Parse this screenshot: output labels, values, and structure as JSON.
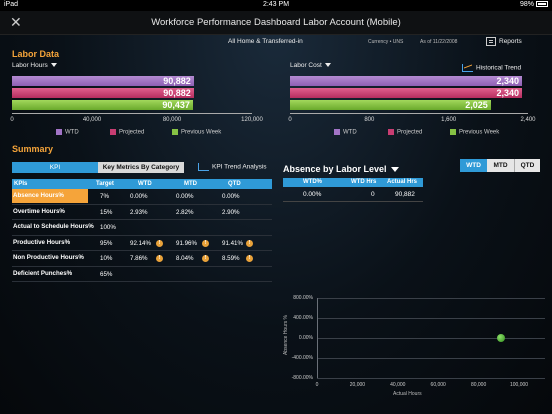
{
  "status_bar": {
    "device": "iPad",
    "time": "2:43 PM",
    "battery": "98%"
  },
  "header": {
    "title": "Workforce Performance Dashboard Labor Account (Mobile)"
  },
  "filters": {
    "scope": "All Home & Transferred-in",
    "currency": "Currency • UNS",
    "as_of_label": "As of",
    "as_of_date": "11/22/2008",
    "reports_label": "Reports"
  },
  "labor_data": {
    "section_title": "Labor Data",
    "historical_trend_label": "Historical Trend",
    "hours_chart": {
      "title": "Labor Hours",
      "ticks": [
        "0",
        "40,000",
        "80,000",
        "120,000"
      ],
      "bars": [
        {
          "name": "WTD",
          "value": 90882,
          "label": "90,882",
          "color": "#a274c6"
        },
        {
          "name": "Projected",
          "value": 90882,
          "label": "90,882",
          "color": "#c83d72"
        },
        {
          "name": "Previous Week",
          "value": 90437,
          "label": "90,437",
          "color": "#86c244"
        }
      ],
      "max": 120000
    },
    "cost_chart": {
      "title": "Labor Cost",
      "ticks": [
        "0",
        "800",
        "1,600",
        "2,400"
      ],
      "bars": [
        {
          "name": "WTD",
          "value": 2340,
          "label": "2,340",
          "color": "#a274c6"
        },
        {
          "name": "Projected",
          "value": 2340,
          "label": "2,340",
          "color": "#c83d72"
        },
        {
          "name": "Previous Week",
          "value": 2025,
          "label": "2,025",
          "color": "#86c244"
        }
      ],
      "max": 2400
    },
    "legend": [
      "WTD",
      "Projected",
      "Previous Week"
    ]
  },
  "summary": {
    "section_title": "Summary",
    "tabs": [
      "KPI",
      "Key Metrics By Category"
    ],
    "kpi_trend_label": "KPI Trend Analysis",
    "kpi_table": {
      "columns": [
        "KPIs",
        "Target",
        "WTD",
        "MTD",
        "QTD"
      ],
      "rows": [
        {
          "name": "Absence Hours%",
          "target": "7%",
          "wtd": "0.00%",
          "mtd": "0.00%",
          "qtd": "0.00%",
          "warn": false,
          "highlight": true
        },
        {
          "name": "Overtime Hours%",
          "target": "15%",
          "wtd": "2.93%",
          "mtd": "2.82%",
          "qtd": "2.90%",
          "warn": false,
          "highlight": false
        },
        {
          "name": "Actual to Schedule Hours%",
          "target": "100%",
          "wtd": "",
          "mtd": "",
          "qtd": "",
          "warn": false,
          "highlight": false
        },
        {
          "name": "Productive Hours%",
          "target": "95%",
          "wtd": "92.14%",
          "mtd": "91.96%",
          "qtd": "91.41%",
          "warn": true,
          "highlight": false
        },
        {
          "name": "Non Productive Hours%",
          "target": "10%",
          "wtd": "7.86%",
          "mtd": "8.04%",
          "qtd": "8.59%",
          "warn": true,
          "highlight": false
        },
        {
          "name": "Deficient Punches%",
          "target": "65%",
          "wtd": "",
          "mtd": "",
          "qtd": "",
          "warn": false,
          "highlight": false
        }
      ]
    }
  },
  "absence": {
    "title": "Absence by Labor Level",
    "segments": [
      "WTD",
      "MTD",
      "QTD"
    ],
    "selected_segment": "WTD",
    "columns": [
      "WTD%",
      "WTD Hrs",
      "Actual Hrs"
    ],
    "row": [
      "0.00%",
      "0",
      "90,882"
    ],
    "scatter": {
      "ylabel": "Absence Hours %",
      "xlabel": "Actual Hours",
      "y_ticks": [
        "800.00%",
        "400.00%",
        "0.00%",
        "-400.00%",
        "-800.00%"
      ],
      "x_ticks": [
        "0",
        "20,000",
        "40,000",
        "60,000",
        "80,000",
        "100,000"
      ],
      "point": {
        "x": 90882,
        "y": 0
      }
    }
  },
  "chart_data": [
    {
      "type": "bar",
      "title": "Labor Hours",
      "categories": [
        "WTD",
        "Projected",
        "Previous Week"
      ],
      "values": [
        90882,
        90882,
        90437
      ],
      "xlim": [
        0,
        120000
      ]
    },
    {
      "type": "bar",
      "title": "Labor Cost",
      "categories": [
        "WTD",
        "Projected",
        "Previous Week"
      ],
      "values": [
        2340,
        2340,
        2025
      ],
      "xlim": [
        0,
        2400
      ]
    },
    {
      "type": "scatter",
      "xlabel": "Actual Hours",
      "ylabel": "Absence Hours %",
      "x": [
        90882
      ],
      "y": [
        0
      ],
      "xlim": [
        0,
        100000
      ],
      "ylim": [
        -800,
        800
      ]
    }
  ]
}
